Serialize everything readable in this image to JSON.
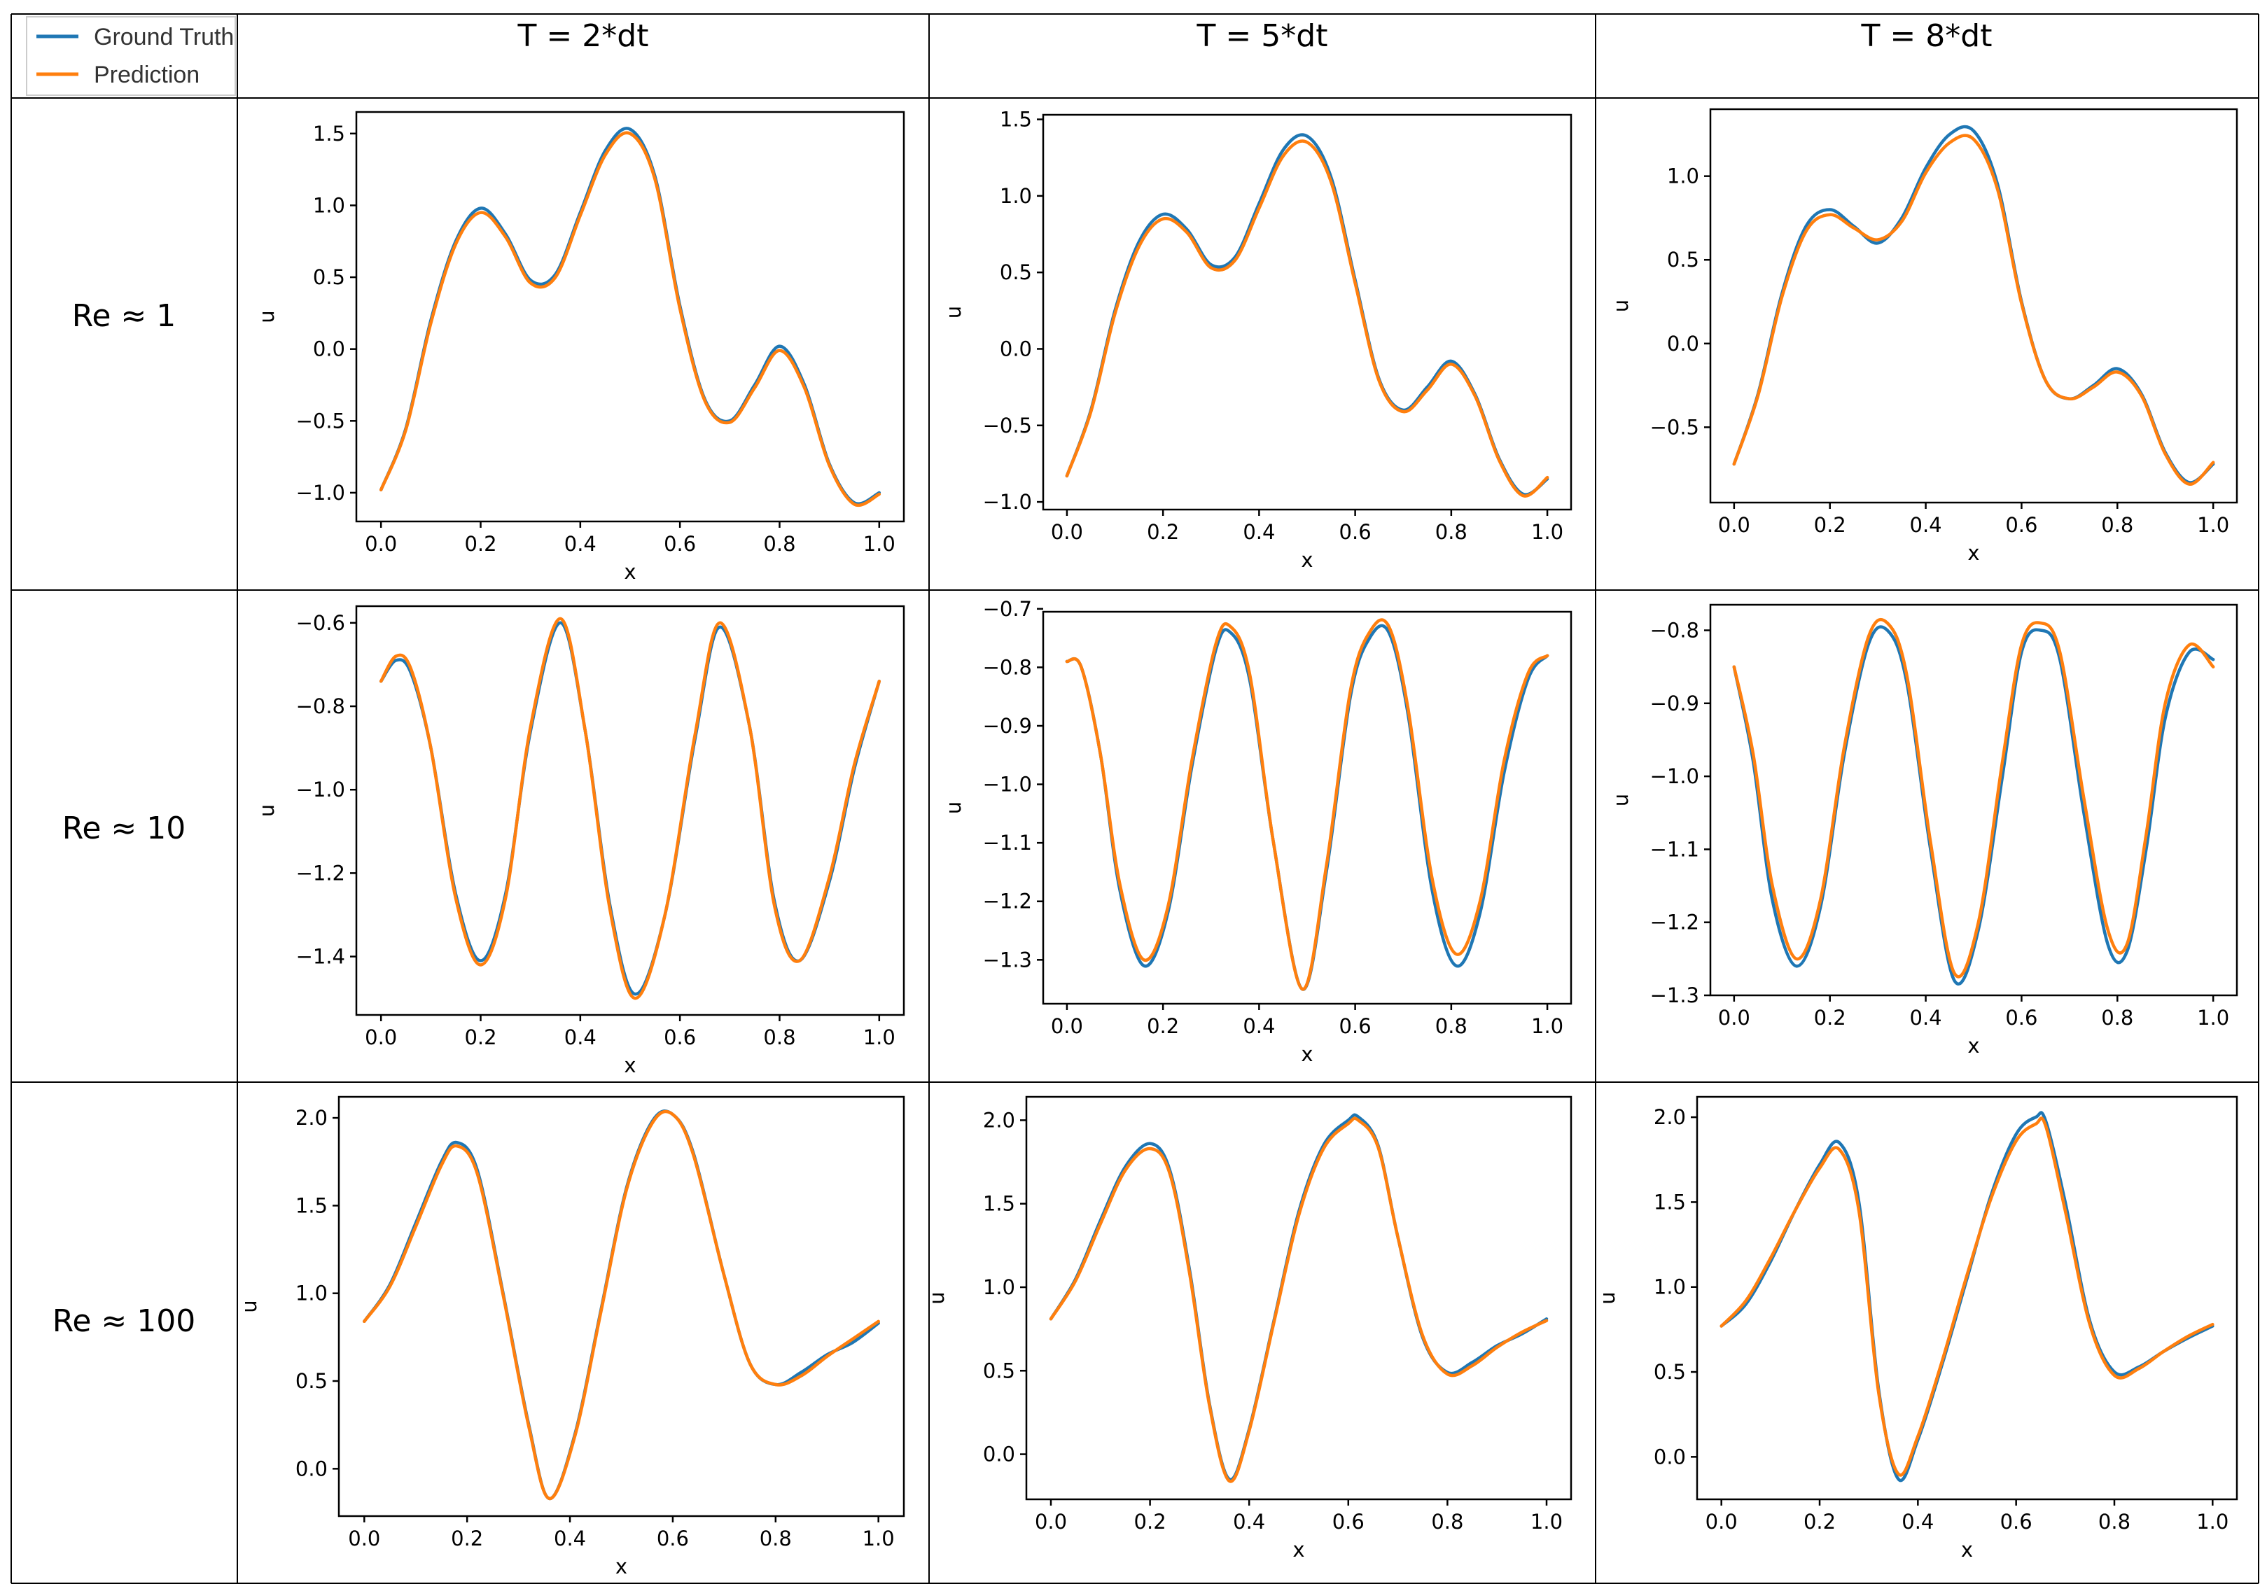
{
  "legend": {
    "entries": [
      {
        "label": "Ground Truth",
        "color": "#1f77b4"
      },
      {
        "label": "Prediction",
        "color": "#ff7f0e"
      }
    ]
  },
  "columns": [
    "T = 2*dt",
    "T = 5*dt",
    "T = 8*dt"
  ],
  "rows": [
    "Re ≈ 1",
    "Re ≈ 10",
    "Re ≈ 100"
  ],
  "chart_data": [
    {
      "type": "line",
      "row": 0,
      "col": 0,
      "xlabel": "x",
      "ylabel": "u",
      "xlim": [
        0,
        1
      ],
      "ylim": [
        -1.2,
        1.65
      ],
      "yticks": [
        -1.0,
        -0.5,
        0.0,
        0.5,
        1.0,
        1.5
      ],
      "xticks": [
        0.0,
        0.2,
        0.4,
        0.6,
        0.8,
        1.0
      ],
      "x": [
        0.0,
        0.05,
        0.1,
        0.15,
        0.2,
        0.25,
        0.3,
        0.35,
        0.4,
        0.45,
        0.5,
        0.55,
        0.6,
        0.65,
        0.7,
        0.75,
        0.8,
        0.85,
        0.9,
        0.95,
        1.0
      ],
      "series": [
        {
          "name": "Ground Truth",
          "color": "#1f77b4",
          "values": [
            -0.98,
            -0.55,
            0.2,
            0.75,
            0.98,
            0.8,
            0.48,
            0.52,
            0.95,
            1.38,
            1.53,
            1.2,
            0.3,
            -0.35,
            -0.5,
            -0.25,
            0.02,
            -0.25,
            -0.8,
            -1.07,
            -1.0
          ]
        },
        {
          "name": "Prediction",
          "color": "#ff7f0e",
          "values": [
            -0.98,
            -0.56,
            0.18,
            0.73,
            0.95,
            0.78,
            0.46,
            0.5,
            0.93,
            1.35,
            1.5,
            1.18,
            0.28,
            -0.36,
            -0.51,
            -0.27,
            -0.01,
            -0.27,
            -0.81,
            -1.08,
            -1.01
          ]
        }
      ]
    },
    {
      "type": "line",
      "row": 0,
      "col": 1,
      "xlabel": "x",
      "ylabel": "u",
      "xlim": [
        0,
        1
      ],
      "ylim": [
        -1.05,
        1.53
      ],
      "yticks": [
        -1.0,
        -0.5,
        0.0,
        0.5,
        1.0,
        1.5
      ],
      "xticks": [
        0.0,
        0.2,
        0.4,
        0.6,
        0.8,
        1.0
      ],
      "x": [
        0.0,
        0.05,
        0.1,
        0.15,
        0.2,
        0.25,
        0.3,
        0.35,
        0.4,
        0.45,
        0.5,
        0.55,
        0.6,
        0.65,
        0.7,
        0.75,
        0.8,
        0.85,
        0.9,
        0.95,
        1.0
      ],
      "series": [
        {
          "name": "Ground Truth",
          "color": "#1f77b4",
          "values": [
            -0.83,
            -0.4,
            0.25,
            0.7,
            0.88,
            0.78,
            0.55,
            0.6,
            0.95,
            1.3,
            1.39,
            1.12,
            0.45,
            -0.2,
            -0.4,
            -0.25,
            -0.08,
            -0.3,
            -0.72,
            -0.95,
            -0.85
          ]
        },
        {
          "name": "Prediction",
          "color": "#ff7f0e",
          "values": [
            -0.83,
            -0.41,
            0.23,
            0.67,
            0.85,
            0.76,
            0.53,
            0.58,
            0.92,
            1.26,
            1.35,
            1.09,
            0.43,
            -0.21,
            -0.41,
            -0.27,
            -0.1,
            -0.31,
            -0.73,
            -0.96,
            -0.84
          ]
        }
      ]
    },
    {
      "type": "line",
      "row": 0,
      "col": 2,
      "xlabel": "x",
      "ylabel": "u",
      "xlim": [
        0,
        1
      ],
      "ylim": [
        -0.95,
        1.4
      ],
      "yticks": [
        -0.5,
        0.0,
        0.5,
        1.0
      ],
      "xticks": [
        0.0,
        0.2,
        0.4,
        0.6,
        0.8,
        1.0
      ],
      "x": [
        0.0,
        0.05,
        0.1,
        0.15,
        0.2,
        0.25,
        0.3,
        0.35,
        0.4,
        0.45,
        0.5,
        0.55,
        0.6,
        0.65,
        0.7,
        0.75,
        0.8,
        0.85,
        0.9,
        0.95,
        1.0
      ],
      "series": [
        {
          "name": "Ground Truth",
          "color": "#1f77b4",
          "values": [
            -0.72,
            -0.3,
            0.3,
            0.7,
            0.8,
            0.7,
            0.6,
            0.75,
            1.05,
            1.25,
            1.27,
            0.95,
            0.25,
            -0.22,
            -0.33,
            -0.25,
            -0.15,
            -0.3,
            -0.65,
            -0.83,
            -0.72
          ]
        },
        {
          "name": "Prediction",
          "color": "#ff7f0e",
          "values": [
            -0.72,
            -0.31,
            0.28,
            0.67,
            0.77,
            0.69,
            0.62,
            0.73,
            1.02,
            1.2,
            1.22,
            0.92,
            0.24,
            -0.22,
            -0.33,
            -0.26,
            -0.17,
            -0.31,
            -0.66,
            -0.84,
            -0.71
          ]
        }
      ]
    },
    {
      "type": "line",
      "row": 1,
      "col": 0,
      "xlabel": "x",
      "ylabel": "u",
      "xlim": [
        0,
        1
      ],
      "ylim": [
        -1.54,
        -0.56
      ],
      "yticks": [
        -1.4,
        -1.2,
        -1.0,
        -0.8,
        -0.6
      ],
      "xticks": [
        0.0,
        0.2,
        0.4,
        0.6,
        0.8,
        1.0
      ],
      "x": [
        0.0,
        0.03,
        0.06,
        0.1,
        0.15,
        0.2,
        0.25,
        0.3,
        0.36,
        0.41,
        0.46,
        0.51,
        0.57,
        0.63,
        0.68,
        0.74,
        0.79,
        0.84,
        0.9,
        0.95,
        1.0
      ],
      "series": [
        {
          "name": "Ground Truth",
          "color": "#1f77b4",
          "values": [
            -0.74,
            -0.69,
            -0.72,
            -0.9,
            -1.25,
            -1.41,
            -1.25,
            -0.86,
            -0.6,
            -0.86,
            -1.28,
            -1.49,
            -1.3,
            -0.88,
            -0.61,
            -0.85,
            -1.27,
            -1.41,
            -1.22,
            -0.95,
            -0.74
          ]
        },
        {
          "name": "Prediction",
          "color": "#ff7f0e",
          "values": [
            -0.74,
            -0.68,
            -0.71,
            -0.9,
            -1.26,
            -1.42,
            -1.26,
            -0.85,
            -0.59,
            -0.86,
            -1.29,
            -1.5,
            -1.3,
            -0.87,
            -0.6,
            -0.85,
            -1.28,
            -1.41,
            -1.21,
            -0.94,
            -0.74
          ]
        }
      ]
    },
    {
      "type": "line",
      "row": 1,
      "col": 1,
      "xlabel": "x",
      "ylabel": "u",
      "xlim": [
        0,
        1
      ],
      "ylim": [
        -1.375,
        -0.705
      ],
      "yticks": [
        -1.3,
        -1.2,
        -1.1,
        -1.0,
        -0.9,
        -0.8,
        -0.7
      ],
      "xticks": [
        0.0,
        0.2,
        0.4,
        0.6,
        0.8,
        1.0
      ],
      "x": [
        0.0,
        0.03,
        0.07,
        0.11,
        0.16,
        0.21,
        0.26,
        0.31,
        0.34,
        0.38,
        0.43,
        0.49,
        0.54,
        0.59,
        0.63,
        0.67,
        0.71,
        0.76,
        0.81,
        0.86,
        0.91,
        0.96,
        1.0
      ],
      "series": [
        {
          "name": "Ground Truth",
          "color": "#1f77b4",
          "values": [
            -0.79,
            -0.8,
            -0.95,
            -1.18,
            -1.31,
            -1.22,
            -0.97,
            -0.77,
            -0.74,
            -0.82,
            -1.1,
            -1.35,
            -1.15,
            -0.85,
            -0.75,
            -0.74,
            -0.88,
            -1.18,
            -1.31,
            -1.22,
            -0.98,
            -0.82,
            -0.78
          ]
        },
        {
          "name": "Prediction",
          "color": "#ff7f0e",
          "values": [
            -0.79,
            -0.8,
            -0.95,
            -1.17,
            -1.3,
            -1.21,
            -0.96,
            -0.76,
            -0.73,
            -0.81,
            -1.1,
            -1.35,
            -1.14,
            -0.84,
            -0.74,
            -0.73,
            -0.87,
            -1.16,
            -1.29,
            -1.2,
            -0.96,
            -0.81,
            -0.78
          ]
        }
      ]
    },
    {
      "type": "line",
      "row": 1,
      "col": 2,
      "xlabel": "x",
      "ylabel": "u",
      "xlim": [
        0,
        1
      ],
      "ylim": [
        -1.3,
        -0.765
      ],
      "yticks": [
        -1.3,
        -1.2,
        -1.1,
        -1.0,
        -0.9,
        -0.8
      ],
      "xticks": [
        0.0,
        0.2,
        0.4,
        0.6,
        0.8,
        1.0
      ],
      "x": [
        0.0,
        0.04,
        0.08,
        0.13,
        0.18,
        0.23,
        0.28,
        0.32,
        0.36,
        0.41,
        0.46,
        0.51,
        0.56,
        0.6,
        0.64,
        0.68,
        0.73,
        0.78,
        0.82,
        0.86,
        0.9,
        0.95,
        1.0
      ],
      "series": [
        {
          "name": "Ground Truth",
          "color": "#1f77b4",
          "values": [
            -0.85,
            -0.98,
            -1.17,
            -1.26,
            -1.18,
            -0.97,
            -0.82,
            -0.8,
            -0.87,
            -1.1,
            -1.28,
            -1.21,
            -1.0,
            -0.83,
            -0.8,
            -0.84,
            -1.05,
            -1.23,
            -1.24,
            -1.1,
            -0.92,
            -0.83,
            -0.84
          ]
        },
        {
          "name": "Prediction",
          "color": "#ff7f0e",
          "values": [
            -0.85,
            -0.97,
            -1.15,
            -1.25,
            -1.17,
            -0.96,
            -0.81,
            -0.79,
            -0.86,
            -1.09,
            -1.27,
            -1.2,
            -0.98,
            -0.82,
            -0.79,
            -0.83,
            -1.03,
            -1.21,
            -1.23,
            -1.08,
            -0.9,
            -0.82,
            -0.85
          ]
        }
      ]
    },
    {
      "type": "line",
      "row": 2,
      "col": 0,
      "xlabel": "x",
      "ylabel": "u",
      "xlim": [
        0,
        1
      ],
      "ylim": [
        -0.27,
        2.12
      ],
      "yticks": [
        0.0,
        0.5,
        1.0,
        1.5,
        2.0
      ],
      "xticks": [
        0.0,
        0.2,
        0.4,
        0.6,
        0.8,
        1.0
      ],
      "x": [
        0.0,
        0.05,
        0.1,
        0.15,
        0.18,
        0.22,
        0.27,
        0.32,
        0.36,
        0.41,
        0.46,
        0.51,
        0.56,
        0.6,
        0.64,
        0.7,
        0.75,
        0.8,
        0.85,
        0.9,
        0.95,
        1.0
      ],
      "series": [
        {
          "name": "Ground Truth",
          "color": "#1f77b4",
          "values": [
            0.84,
            1.05,
            1.4,
            1.75,
            1.86,
            1.7,
            1.0,
            0.25,
            -0.17,
            0.2,
            0.9,
            1.6,
            1.98,
            2.02,
            1.8,
            1.1,
            0.6,
            0.48,
            0.55,
            0.65,
            0.72,
            0.83
          ]
        },
        {
          "name": "Prediction",
          "color": "#ff7f0e",
          "values": [
            0.84,
            1.04,
            1.38,
            1.73,
            1.84,
            1.68,
            0.99,
            0.24,
            -0.17,
            0.19,
            0.89,
            1.59,
            1.97,
            2.02,
            1.79,
            1.1,
            0.6,
            0.48,
            0.53,
            0.64,
            0.74,
            0.84
          ]
        }
      ]
    },
    {
      "type": "line",
      "row": 2,
      "col": 1,
      "xlabel": "x",
      "ylabel": "u",
      "xlim": [
        0,
        1
      ],
      "ylim": [
        -0.27,
        2.14
      ],
      "yticks": [
        0.0,
        0.5,
        1.0,
        1.5,
        2.0
      ],
      "xticks": [
        0.0,
        0.2,
        0.4,
        0.6,
        0.8,
        1.0
      ],
      "x": [
        0.0,
        0.05,
        0.1,
        0.15,
        0.2,
        0.24,
        0.28,
        0.32,
        0.36,
        0.4,
        0.45,
        0.5,
        0.55,
        0.6,
        0.62,
        0.66,
        0.7,
        0.75,
        0.8,
        0.85,
        0.9,
        0.95,
        1.0
      ],
      "series": [
        {
          "name": "Ground Truth",
          "color": "#1f77b4",
          "values": [
            0.81,
            1.05,
            1.4,
            1.72,
            1.86,
            1.7,
            1.1,
            0.3,
            -0.15,
            0.15,
            0.8,
            1.45,
            1.85,
            2.0,
            2.02,
            1.85,
            1.3,
            0.7,
            0.49,
            0.55,
            0.65,
            0.72,
            0.81
          ]
        },
        {
          "name": "Prediction",
          "color": "#ff7f0e",
          "values": [
            0.81,
            1.04,
            1.38,
            1.7,
            1.83,
            1.68,
            1.08,
            0.29,
            -0.16,
            0.14,
            0.79,
            1.43,
            1.83,
            1.98,
            2.0,
            1.84,
            1.3,
            0.71,
            0.48,
            0.53,
            0.64,
            0.73,
            0.8
          ]
        }
      ]
    },
    {
      "type": "line",
      "row": 2,
      "col": 2,
      "xlabel": "x",
      "ylabel": "u",
      "xlim": [
        0,
        1
      ],
      "ylim": [
        -0.25,
        2.12
      ],
      "yticks": [
        0.0,
        0.5,
        1.0,
        1.5,
        2.0
      ],
      "xticks": [
        0.0,
        0.2,
        0.4,
        0.6,
        0.8,
        1.0
      ],
      "x": [
        0.0,
        0.05,
        0.1,
        0.15,
        0.2,
        0.24,
        0.28,
        0.32,
        0.36,
        0.4,
        0.45,
        0.5,
        0.55,
        0.6,
        0.64,
        0.66,
        0.7,
        0.75,
        0.8,
        0.85,
        0.9,
        0.95,
        1.0
      ],
      "series": [
        {
          "name": "Ground Truth",
          "color": "#1f77b4",
          "values": [
            0.77,
            0.9,
            1.15,
            1.45,
            1.72,
            1.85,
            1.5,
            0.4,
            -0.13,
            0.1,
            0.55,
            1.05,
            1.55,
            1.9,
            2.0,
            1.98,
            1.5,
            0.8,
            0.5,
            0.53,
            0.62,
            0.7,
            0.77
          ]
        },
        {
          "name": "Prediction",
          "color": "#ff7f0e",
          "values": [
            0.77,
            0.92,
            1.17,
            1.45,
            1.7,
            1.81,
            1.45,
            0.38,
            -0.1,
            0.12,
            0.57,
            1.07,
            1.53,
            1.86,
            1.96,
            1.95,
            1.45,
            0.78,
            0.48,
            0.52,
            0.62,
            0.71,
            0.78
          ]
        }
      ]
    }
  ]
}
